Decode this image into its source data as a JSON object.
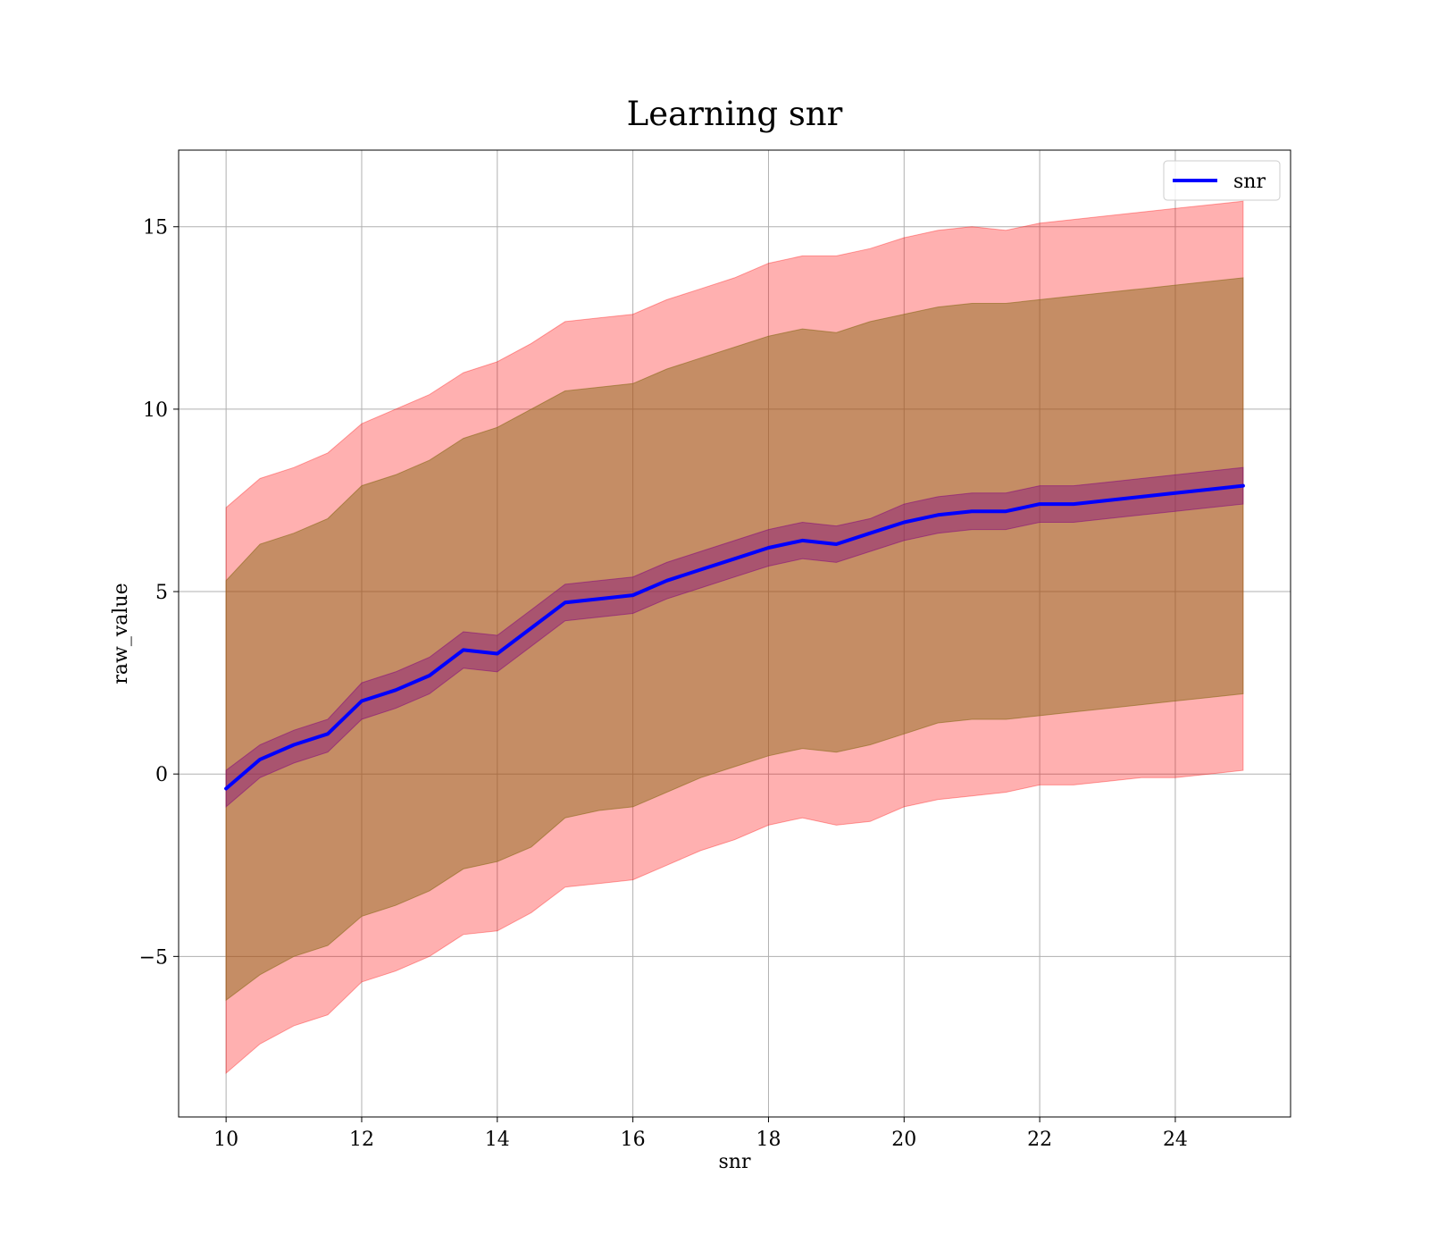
{
  "chart_data": {
    "type": "line",
    "title": "Learning snr",
    "xlabel": "snr",
    "ylabel": "raw_value",
    "xlim": [
      9.3,
      25.7
    ],
    "ylim": [
      -9.4,
      17.1
    ],
    "xticks": [
      10,
      12,
      14,
      16,
      18,
      20,
      22,
      24
    ],
    "yticks": [
      -5,
      0,
      5,
      10,
      15
    ],
    "ytick_labels": [
      "−5",
      "0",
      "5",
      "10",
      "15"
    ],
    "grid": true,
    "legend": {
      "placement": "top-right",
      "entries": [
        "snr"
      ]
    },
    "colors": {
      "line": "#0000ff",
      "outer_band": "#ff0000",
      "middle_band": "#8b6a1a",
      "inner_band": "#800080",
      "grid": "#b0b0b0"
    },
    "x": [
      10.0,
      10.5,
      11.0,
      11.5,
      12.0,
      12.5,
      13.0,
      13.5,
      14.0,
      14.5,
      15.0,
      15.5,
      16.0,
      16.5,
      17.0,
      17.5,
      18.0,
      18.5,
      19.0,
      19.5,
      20.0,
      20.5,
      21.0,
      21.5,
      22.0,
      22.5,
      23.0,
      23.5,
      24.0,
      24.5,
      25.0
    ],
    "series": [
      {
        "name": "snr",
        "values": [
          -0.4,
          0.4,
          0.8,
          1.1,
          2.0,
          2.3,
          2.7,
          3.4,
          3.3,
          4.0,
          4.7,
          4.8,
          4.9,
          5.3,
          5.6,
          5.9,
          6.2,
          6.4,
          6.3,
          6.6,
          6.9,
          7.1,
          7.2,
          7.2,
          7.4,
          7.4,
          7.5,
          7.6,
          7.7,
          7.8,
          7.9
        ]
      },
      {
        "name": "outer band upper",
        "values": [
          7.3,
          8.1,
          8.4,
          8.8,
          9.6,
          10.0,
          10.4,
          11.0,
          11.3,
          11.8,
          12.4,
          12.5,
          12.6,
          13.0,
          13.3,
          13.6,
          14.0,
          14.2,
          14.2,
          14.4,
          14.7,
          14.9,
          15.0,
          14.9,
          15.1,
          15.2,
          15.3,
          15.4,
          15.5,
          15.6,
          15.7
        ]
      },
      {
        "name": "outer band lower",
        "values": [
          -8.2,
          -7.4,
          -6.9,
          -6.6,
          -5.7,
          -5.4,
          -5.0,
          -4.4,
          -4.3,
          -3.8,
          -3.1,
          -3.0,
          -2.9,
          -2.5,
          -2.1,
          -1.8,
          -1.4,
          -1.2,
          -1.4,
          -1.3,
          -0.9,
          -0.7,
          -0.6,
          -0.5,
          -0.3,
          -0.3,
          -0.2,
          -0.1,
          -0.1,
          0.0,
          0.1
        ]
      },
      {
        "name": "middle band upper",
        "values": [
          5.3,
          6.3,
          6.6,
          7.0,
          7.9,
          8.2,
          8.6,
          9.2,
          9.5,
          10.0,
          10.5,
          10.6,
          10.7,
          11.1,
          11.4,
          11.7,
          12.0,
          12.2,
          12.1,
          12.4,
          12.6,
          12.8,
          12.9,
          12.9,
          13.0,
          13.1,
          13.2,
          13.3,
          13.4,
          13.5,
          13.6
        ]
      },
      {
        "name": "middle band lower",
        "values": [
          -6.2,
          -5.5,
          -5.0,
          -4.7,
          -3.9,
          -3.6,
          -3.2,
          -2.6,
          -2.4,
          -2.0,
          -1.2,
          -1.0,
          -0.9,
          -0.5,
          -0.1,
          0.2,
          0.5,
          0.7,
          0.6,
          0.8,
          1.1,
          1.4,
          1.5,
          1.5,
          1.6,
          1.7,
          1.8,
          1.9,
          2.0,
          2.1,
          2.2
        ]
      },
      {
        "name": "inner band upper",
        "values": [
          0.1,
          0.8,
          1.2,
          1.5,
          2.5,
          2.8,
          3.2,
          3.9,
          3.8,
          4.5,
          5.2,
          5.3,
          5.4,
          5.8,
          6.1,
          6.4,
          6.7,
          6.9,
          6.8,
          7.0,
          7.4,
          7.6,
          7.7,
          7.7,
          7.9,
          7.9,
          8.0,
          8.1,
          8.2,
          8.3,
          8.4
        ]
      },
      {
        "name": "inner band lower",
        "values": [
          -0.9,
          -0.1,
          0.3,
          0.6,
          1.5,
          1.8,
          2.2,
          2.9,
          2.8,
          3.5,
          4.2,
          4.3,
          4.4,
          4.8,
          5.1,
          5.4,
          5.7,
          5.9,
          5.8,
          6.1,
          6.4,
          6.6,
          6.7,
          6.7,
          6.9,
          6.9,
          7.0,
          7.1,
          7.2,
          7.3,
          7.4
        ]
      }
    ]
  }
}
